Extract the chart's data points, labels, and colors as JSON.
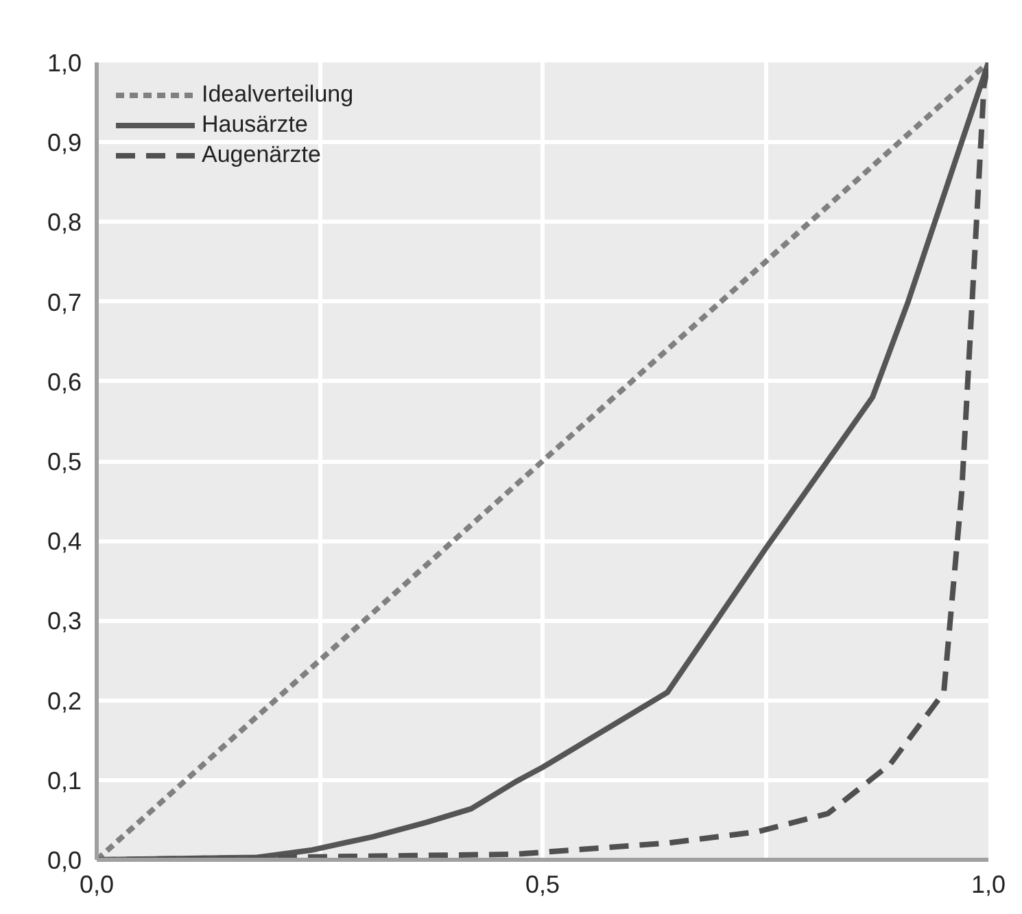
{
  "chart_data": {
    "type": "line",
    "xlim": [
      0,
      1
    ],
    "ylim": [
      0,
      1
    ],
    "xticks": [
      {
        "value": 0,
        "label": "0,0"
      },
      {
        "value": 0.25,
        "label": null
      },
      {
        "value": 0.5,
        "label": "0,5"
      },
      {
        "value": 0.75,
        "label": null
      },
      {
        "value": 1,
        "label": "1,0"
      }
    ],
    "yticks": [
      {
        "value": 0,
        "label": "0,0"
      },
      {
        "value": 0.1,
        "label": "0,1"
      },
      {
        "value": 0.2,
        "label": "0,2"
      },
      {
        "value": 0.3,
        "label": "0,3"
      },
      {
        "value": 0.4,
        "label": "0,4"
      },
      {
        "value": 0.5,
        "label": "0,5"
      },
      {
        "value": 0.6,
        "label": "0,6"
      },
      {
        "value": 0.7,
        "label": "0,7"
      },
      {
        "value": 0.8,
        "label": "0,8"
      },
      {
        "value": 0.9,
        "label": "0,9"
      },
      {
        "value": 1,
        "label": "1,0"
      }
    ],
    "grid": true,
    "legend": "top left",
    "marker": "none",
    "series": [
      {
        "name": "Idealverteilung",
        "color": "#808080",
        "line_style": "dotted",
        "x": [
          0,
          1
        ],
        "values": [
          0,
          1
        ]
      },
      {
        "name": "Hausärzte",
        "color": "#555555",
        "line_style": "solid",
        "x": [
          0,
          0.18,
          0.24,
          0.31,
          0.37,
          0.42,
          0.47,
          0.5,
          0.64,
          0.75,
          0.87,
          0.91,
          1
        ],
        "values": [
          0,
          0.003,
          0.012,
          0.029,
          0.047,
          0.064,
          0.098,
          0.116,
          0.21,
          0.39,
          0.58,
          0.7,
          1
        ]
      },
      {
        "name": "Augenärzte",
        "color": "#505050",
        "line_style": "dashed",
        "x": [
          0,
          0.47,
          0.64,
          0.74,
          0.82,
          0.89,
          0.95,
          0.97,
          0.995,
          1
        ],
        "values": [
          0,
          0.007,
          0.021,
          0.035,
          0.058,
          0.12,
          0.21,
          0.46,
          0.97,
          1
        ]
      }
    ]
  }
}
